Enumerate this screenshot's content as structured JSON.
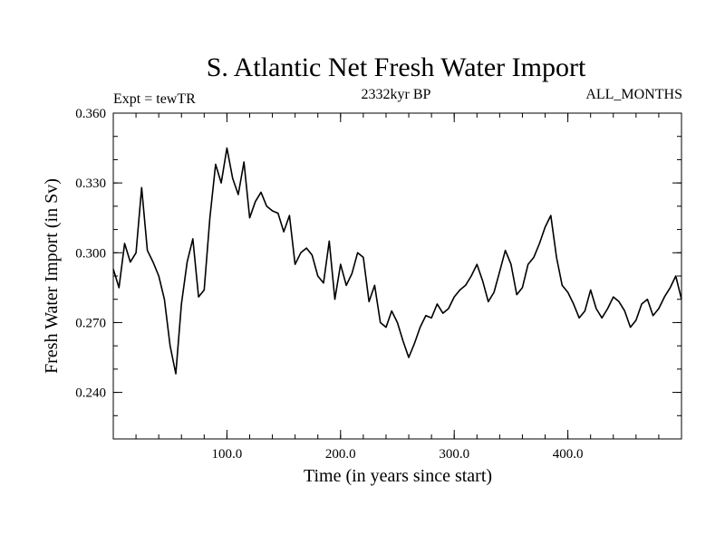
{
  "chart_data": {
    "type": "line",
    "title": "S. Atlantic Net Fresh Water Import",
    "subtitle": "2332kyr BP",
    "left_label": "Expt = tewTR",
    "right_label": "ALL_MONTHS",
    "xlabel": "Time (in years since start)",
    "ylabel": "Fresh Water Import (in Sv)",
    "xlim": [
      0,
      500
    ],
    "ylim": [
      0.22,
      0.36
    ],
    "x_ticks": [
      100,
      200,
      300,
      400
    ],
    "x_tick_labels": [
      "100.0",
      "200.0",
      "300.0",
      "400.0"
    ],
    "y_ticks": [
      0.24,
      0.27,
      0.3,
      0.33,
      0.36
    ],
    "y_tick_labels": [
      "0.240",
      "0.270",
      "0.300",
      "0.330",
      "0.360"
    ],
    "line_color": "#000000",
    "series": [
      {
        "name": "fresh_water_import",
        "x_start": 0,
        "x_step": 5,
        "values": [
          0.293,
          0.285,
          0.304,
          0.296,
          0.3,
          0.328,
          0.301,
          0.296,
          0.29,
          0.28,
          0.26,
          0.248,
          0.278,
          0.296,
          0.306,
          0.281,
          0.284,
          0.315,
          0.338,
          0.33,
          0.345,
          0.332,
          0.325,
          0.339,
          0.315,
          0.322,
          0.326,
          0.32,
          0.318,
          0.317,
          0.309,
          0.316,
          0.295,
          0.3,
          0.302,
          0.299,
          0.29,
          0.287,
          0.305,
          0.28,
          0.295,
          0.286,
          0.291,
          0.3,
          0.298,
          0.279,
          0.286,
          0.27,
          0.268,
          0.275,
          0.27,
          0.262,
          0.255,
          0.261,
          0.268,
          0.273,
          0.272,
          0.278,
          0.274,
          0.276,
          0.281,
          0.284,
          0.286,
          0.29,
          0.295,
          0.288,
          0.279,
          0.283,
          0.292,
          0.301,
          0.295,
          0.282,
          0.285,
          0.295,
          0.298,
          0.304,
          0.311,
          0.316,
          0.298,
          0.286,
          0.283,
          0.278,
          0.272,
          0.275,
          0.284,
          0.276,
          0.272,
          0.276,
          0.281,
          0.279,
          0.275,
          0.268,
          0.271,
          0.278,
          0.28,
          0.273,
          0.276,
          0.281,
          0.285,
          0.29,
          0.28
        ]
      }
    ]
  }
}
